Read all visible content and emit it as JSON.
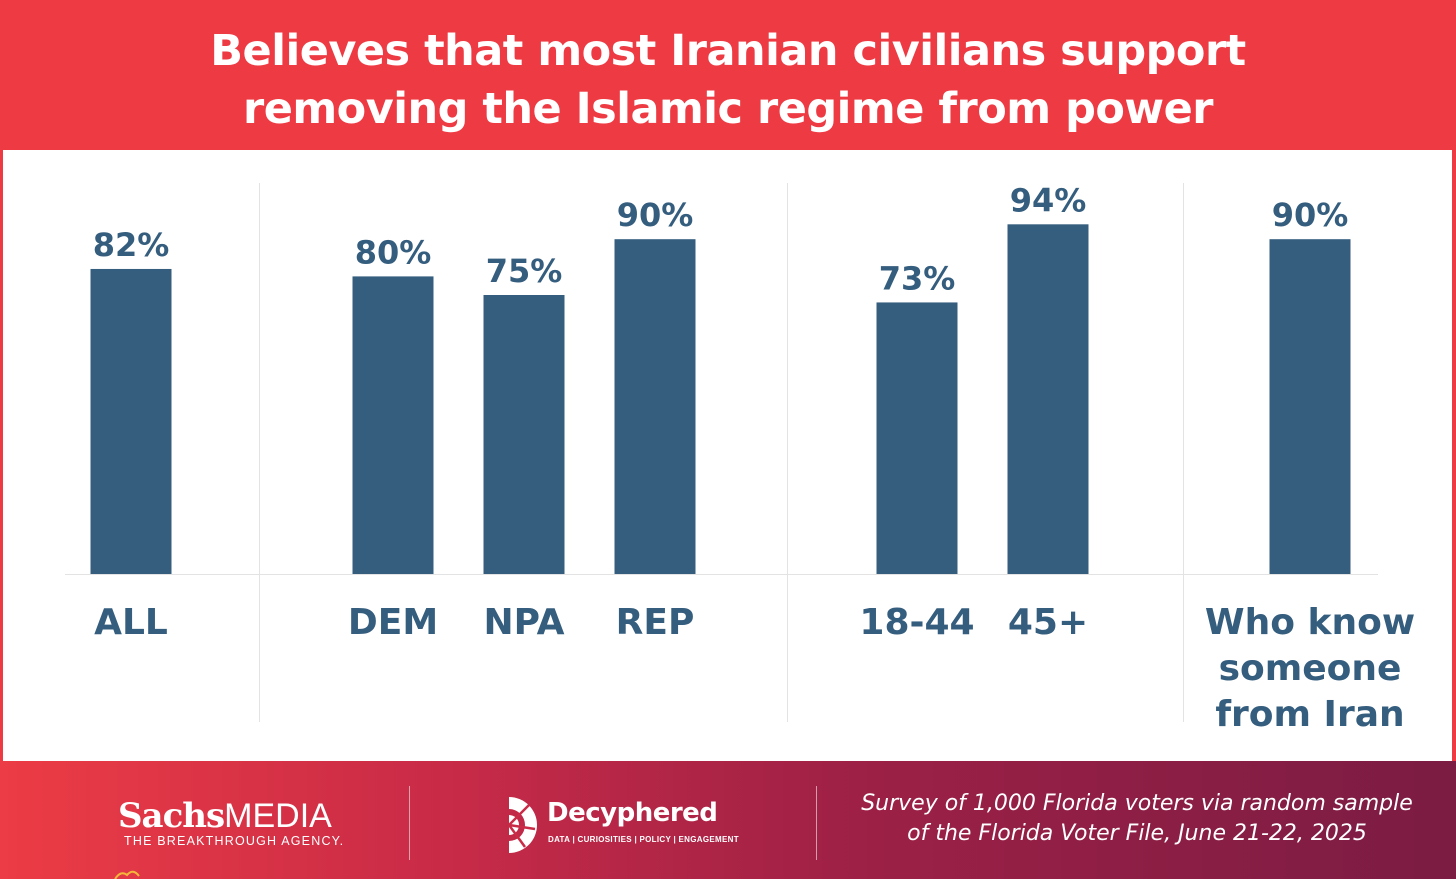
{
  "header": {
    "title": "Believes that most Iranian civilians support removing the Islamic regime from power"
  },
  "chart_data": {
    "type": "bar",
    "title": "Believes that most Iranian civilians support removing the Islamic regime from power",
    "ylim": [
      0,
      100
    ],
    "grid": false,
    "groups": [
      {
        "bars": [
          {
            "category": "ALL",
            "value": 82,
            "label": "82%"
          }
        ]
      },
      {
        "bars": [
          {
            "category": "DEM",
            "value": 80,
            "label": "80%"
          },
          {
            "category": "NPA",
            "value": 75,
            "label": "75%"
          },
          {
            "category": "REP",
            "value": 90,
            "label": "90%"
          }
        ]
      },
      {
        "bars": [
          {
            "category": "18-44",
            "value": 73,
            "label": "73%"
          },
          {
            "category": "45+",
            "value": 94,
            "label": "94%"
          }
        ]
      },
      {
        "bars": [
          {
            "category": "Who know someone from Iran",
            "category_lines": [
              "Who know",
              "someone",
              "from Iran"
            ],
            "value": 90,
            "label": "90%"
          }
        ]
      }
    ]
  },
  "footer": {
    "sachs_bold": "Sachs",
    "sachs_light": "MEDIA",
    "sachs_tagline": "THE BREAKTHROUGH AGENCY.",
    "decyphered_name": "Decyphered",
    "decyphered_tagline": "DATA | CURIOSITIES | POLICY | ENGAGEMENT",
    "survey_note_line1": "Survey of 1,000 Florida voters via random sample",
    "survey_note_line2": "of the Florida Voter File, June 21-22, 2025"
  },
  "colors": {
    "background": "#ee3a43",
    "bar": "#345d7e",
    "label": "#345d7e",
    "panel": "#ffffff",
    "footer_end": "#7b1c43"
  }
}
